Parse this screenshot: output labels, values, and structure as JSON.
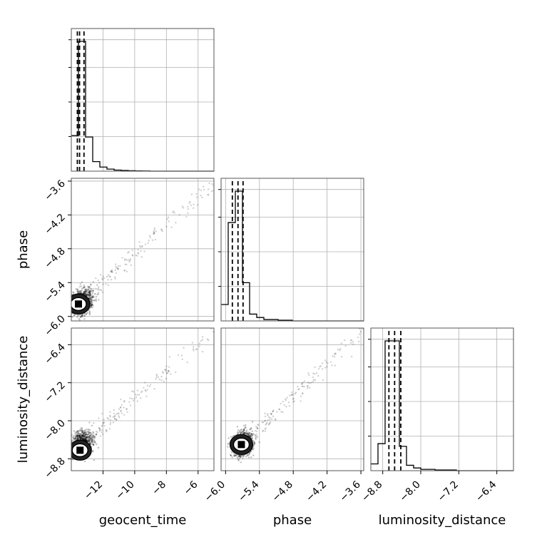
{
  "chart_data": {
    "type": "corner",
    "parameters": [
      "geocent_time",
      "phase",
      "luminosity_distance"
    ],
    "axis_labels": {
      "geocent_time": "geocent_time",
      "phase": "phase",
      "luminosity_distance": "luminosity_distance"
    },
    "ranges": {
      "geocent_time": [
        -14.0,
        -5.0
      ],
      "phase": [
        -6.08,
        -3.55
      ],
      "luminosity_distance": [
        -9.05,
        -6.05
      ]
    },
    "ticks": {
      "geocent_time": [
        -12,
        -10,
        -8,
        -6
      ],
      "phase": [
        -6.0,
        -5.4,
        -4.8,
        -4.2,
        -3.6
      ],
      "luminosity_distance": [
        -8.8,
        -8.0,
        -7.2,
        -6.4
      ]
    },
    "tick_labels": {
      "geocent_time": [
        "−12",
        "−10",
        "−8",
        "−6"
      ],
      "phase": [
        "−6.0",
        "−5.4",
        "−4.8",
        "−4.2",
        "−3.6"
      ],
      "luminosity_distance": [
        "−8.8",
        "−8.0",
        "−7.2",
        "−6.4"
      ]
    },
    "histograms": {
      "geocent_time": {
        "edges": [
          -14.0,
          -13.55,
          -13.1,
          -12.65,
          -12.2,
          -11.75,
          -11.3,
          -10.85,
          -10.4,
          -9.95,
          -9.5,
          -9.05,
          -8.6,
          -8.15,
          -7.7,
          -7.25,
          -6.8,
          -6.35,
          -5.9,
          -5.45,
          -5.0
        ],
        "counts": [
          0.26,
          0.95,
          0.25,
          0.07,
          0.03,
          0.015,
          0.008,
          0.005,
          0.003,
          0.002,
          0.001,
          0.0,
          0.0,
          0.0,
          0.0,
          0.0,
          0.0,
          0.0,
          0.0,
          0.0
        ],
        "quantiles": [
          -13.62,
          -13.48,
          -13.2
        ]
      },
      "phase": {
        "edges": [
          -6.08,
          -5.9535,
          -5.827,
          -5.7005,
          -5.574,
          -5.4475,
          -5.321,
          -5.1945,
          -5.068,
          -4.9415,
          -4.815,
          -4.6885,
          -4.562,
          -4.4355,
          -4.309,
          -4.1825,
          -4.056,
          -3.9295,
          -3.803,
          -3.6765,
          -3.55
        ],
        "counts": [
          0.12,
          0.72,
          0.95,
          0.28,
          0.05,
          0.025,
          0.01,
          0.01,
          0.005,
          0.005,
          0.0,
          0.0,
          0.0,
          0.0,
          0.0,
          0.0,
          0.0,
          0.0,
          0.0,
          0.0
        ],
        "quantiles": [
          -5.88,
          -5.78,
          -5.69
        ]
      },
      "luminosity_distance": {
        "edges": [
          -9.05,
          -8.9,
          -8.75,
          -8.6,
          -8.45,
          -8.3,
          -8.15,
          -8.0,
          -7.85,
          -7.7,
          -7.55,
          -7.4,
          -7.25,
          -7.1,
          -6.95,
          -6.8,
          -6.65,
          -6.5,
          -6.35,
          -6.2,
          -6.05
        ],
        "counts": [
          0.05,
          0.2,
          0.96,
          0.96,
          0.18,
          0.04,
          0.02,
          0.01,
          0.01,
          0.005,
          0.005,
          0.005,
          0.0,
          0.0,
          0.0,
          0.0,
          0.0,
          0.0,
          0.0,
          0.0
        ],
        "quantiles": [
          -8.67,
          -8.55,
          -8.42
        ]
      }
    },
    "scatter_pairs": [
      {
        "x": "geocent_time",
        "y": "phase",
        "core_x": -13.5,
        "core_y": -5.8,
        "density_peak": [
          -13.55,
          -5.78
        ],
        "outlier_max": [
          -5.05,
          -3.62
        ]
      },
      {
        "x": "geocent_time",
        "y": "luminosity_distance",
        "core_x": -13.55,
        "core_y": -8.55,
        "density_peak": [
          -13.45,
          -8.62
        ],
        "outlier_max": [
          -5.05,
          -6.12
        ]
      },
      {
        "x": "phase",
        "y": "luminosity_distance",
        "core_x": -5.75,
        "core_y": -8.55,
        "density_peak": [
          -5.72,
          -8.5
        ],
        "outlier_max": [
          -3.58,
          -6.12
        ]
      }
    ],
    "grid": true,
    "histogram_y_ticklabels": false
  }
}
